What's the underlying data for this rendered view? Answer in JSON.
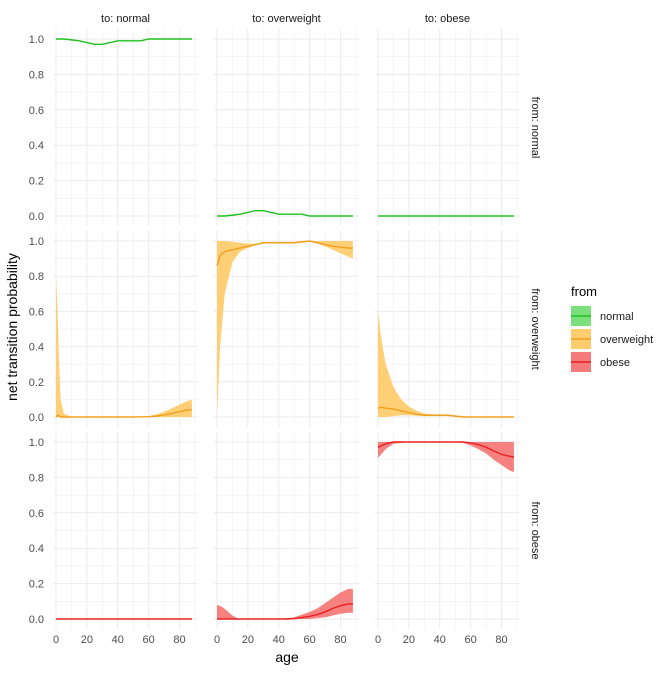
{
  "chart_data": {
    "type": "area",
    "facets": {
      "columns": [
        "to: normal",
        "to: overweight",
        "to: obese"
      ],
      "rows": [
        "from: normal",
        "from: overweight",
        "from: obese"
      ]
    },
    "xlabel": "age",
    "ylabel": "net transition probability",
    "xlim": [
      0,
      90
    ],
    "ylim": [
      0,
      1.05
    ],
    "x_ticks": [
      0,
      20,
      40,
      60,
      80
    ],
    "y_ticks": [
      "0.0",
      "0.2",
      "0.4",
      "0.6",
      "0.8",
      "1.0"
    ],
    "grid": true,
    "legend": {
      "title": "from",
      "placement": "right",
      "entries": [
        "normal",
        "overweight",
        "obese"
      ]
    },
    "colors": {
      "normal": "#20c020",
      "overweight": "#f0a020",
      "obese": "#e82020",
      "normal_fill": "#7be07b",
      "overweight_fill": "#ffcc6e",
      "obese_fill": "#f57a7a",
      "panel_bg": "#ffffff",
      "grid": "#ebebeb",
      "text": "#4d4d4d"
    },
    "panels": [
      {
        "row": 0,
        "col": 0,
        "series": "normal",
        "x": [
          0,
          5,
          10,
          15,
          20,
          25,
          30,
          35,
          40,
          45,
          50,
          55,
          60,
          65,
          70,
          75,
          80,
          85,
          88
        ],
        "y": [
          1.0,
          1.0,
          0.995,
          0.99,
          0.98,
          0.97,
          0.97,
          0.98,
          0.99,
          0.99,
          0.99,
          0.99,
          1.0,
          1.0,
          1.0,
          1.0,
          1.0,
          1.0,
          1.0
        ]
      },
      {
        "row": 0,
        "col": 1,
        "series": "normal",
        "x": [
          0,
          5,
          10,
          15,
          20,
          25,
          30,
          35,
          40,
          45,
          50,
          55,
          60,
          65,
          70,
          75,
          80,
          85,
          88
        ],
        "y": [
          0.0,
          0.0,
          0.005,
          0.01,
          0.02,
          0.03,
          0.03,
          0.02,
          0.01,
          0.01,
          0.01,
          0.01,
          0.0,
          0.0,
          0.0,
          0.0,
          0.0,
          0.0,
          0.0
        ]
      },
      {
        "row": 0,
        "col": 2,
        "series": "normal",
        "x": [
          0,
          88
        ],
        "y": [
          0.0,
          0.0
        ]
      },
      {
        "row": 1,
        "col": 0,
        "series": "overweight",
        "x": [
          0,
          1,
          2,
          3,
          5,
          10,
          20,
          30,
          40,
          50,
          60,
          65,
          70,
          75,
          80,
          85,
          88
        ],
        "y": [
          0.0,
          0.01,
          0.005,
          0.0,
          0.0,
          0.0,
          0.0,
          0.0,
          0.0,
          0.0,
          0.002,
          0.005,
          0.012,
          0.02,
          0.03,
          0.04,
          0.04
        ],
        "lower": [
          0.0,
          0.0,
          0.0,
          0.0,
          0.0,
          0.0,
          0.0,
          0.0,
          0.0,
          0.0,
          0.0,
          0.0,
          0.0,
          0.0,
          0.0,
          0.0,
          0.0
        ],
        "upper": [
          0.8,
          0.6,
          0.3,
          0.1,
          0.02,
          0.0,
          0.0,
          0.0,
          0.0,
          0.0,
          0.005,
          0.015,
          0.03,
          0.05,
          0.07,
          0.09,
          0.1
        ]
      },
      {
        "row": 1,
        "col": 1,
        "series": "overweight",
        "x": [
          0,
          2,
          5,
          10,
          15,
          20,
          25,
          30,
          35,
          40,
          45,
          50,
          55,
          60,
          65,
          70,
          75,
          80,
          85,
          88
        ],
        "y": [
          0.86,
          0.92,
          0.94,
          0.95,
          0.96,
          0.97,
          0.98,
          0.99,
          0.99,
          0.99,
          0.99,
          0.99,
          0.995,
          1.0,
          0.99,
          0.98,
          0.97,
          0.965,
          0.96,
          0.96
        ],
        "lower": [
          0.0,
          0.4,
          0.7,
          0.88,
          0.94,
          0.96,
          0.975,
          0.985,
          0.99,
          0.99,
          0.99,
          0.99,
          0.99,
          0.995,
          0.985,
          0.97,
          0.95,
          0.93,
          0.91,
          0.9
        ],
        "upper": [
          1.0,
          1.0,
          1.0,
          0.995,
          0.99,
          0.985,
          0.985,
          0.99,
          0.995,
          0.995,
          0.995,
          0.995,
          1.0,
          1.0,
          1.0,
          1.0,
          1.0,
          1.0,
          1.0,
          1.0
        ]
      },
      {
        "row": 1,
        "col": 2,
        "series": "overweight",
        "x": [
          0,
          2,
          5,
          10,
          15,
          20,
          25,
          30,
          35,
          40,
          45,
          50,
          55,
          60,
          65,
          70,
          75,
          80,
          85,
          88
        ],
        "y": [
          0.05,
          0.055,
          0.05,
          0.045,
          0.035,
          0.025,
          0.015,
          0.01,
          0.01,
          0.01,
          0.01,
          0.005,
          0.0,
          0.0,
          0.0,
          0.0,
          0.0,
          0.0,
          0.0,
          0.0
        ],
        "lower": [
          0.0,
          0.0,
          0.0,
          0.005,
          0.01,
          0.01,
          0.008,
          0.005,
          0.005,
          0.005,
          0.005,
          0.0,
          0.0,
          0.0,
          0.0,
          0.0,
          0.0,
          0.0,
          0.0,
          0.0
        ],
        "upper": [
          0.6,
          0.45,
          0.3,
          0.17,
          0.1,
          0.06,
          0.035,
          0.02,
          0.015,
          0.015,
          0.015,
          0.01,
          0.005,
          0.0,
          0.0,
          0.0,
          0.0,
          0.0,
          0.0,
          0.0
        ]
      },
      {
        "row": 2,
        "col": 0,
        "series": "obese",
        "x": [
          0,
          88
        ],
        "y": [
          0.0,
          0.0
        ]
      },
      {
        "row": 2,
        "col": 1,
        "series": "obese",
        "x": [
          0,
          3,
          6,
          10,
          14,
          20,
          30,
          40,
          45,
          50,
          55,
          60,
          65,
          70,
          75,
          80,
          85,
          88
        ],
        "y": [
          0.0,
          0.0,
          0.0,
          0.0,
          0.0,
          0.0,
          0.0,
          0.0,
          0.0,
          0.002,
          0.008,
          0.015,
          0.025,
          0.04,
          0.06,
          0.075,
          0.085,
          0.085
        ],
        "lower": [
          0.0,
          0.0,
          0.0,
          0.0,
          0.0,
          0.0,
          0.0,
          0.0,
          0.0,
          0.0,
          0.0,
          0.0,
          0.005,
          0.01,
          0.02,
          0.03,
          0.035,
          0.035
        ],
        "upper": [
          0.08,
          0.07,
          0.05,
          0.02,
          0.0,
          0.0,
          0.0,
          0.0,
          0.005,
          0.01,
          0.025,
          0.04,
          0.06,
          0.09,
          0.12,
          0.15,
          0.17,
          0.17
        ]
      },
      {
        "row": 2,
        "col": 2,
        "series": "obese",
        "x": [
          0,
          5,
          10,
          20,
          30,
          40,
          50,
          55,
          60,
          65,
          70,
          75,
          80,
          85,
          88
        ],
        "y": [
          0.97,
          0.99,
          1.0,
          1.0,
          1.0,
          1.0,
          1.0,
          1.0,
          0.995,
          0.985,
          0.97,
          0.95,
          0.93,
          0.92,
          0.915
        ],
        "lower": [
          0.91,
          0.96,
          0.99,
          1.0,
          1.0,
          1.0,
          1.0,
          0.995,
          0.98,
          0.96,
          0.935,
          0.9,
          0.87,
          0.84,
          0.83
        ],
        "upper": [
          1.0,
          1.0,
          1.0,
          1.0,
          1.0,
          1.0,
          1.0,
          1.0,
          1.0,
          1.0,
          1.0,
          1.0,
          1.0,
          1.0,
          1.0
        ]
      }
    ]
  }
}
